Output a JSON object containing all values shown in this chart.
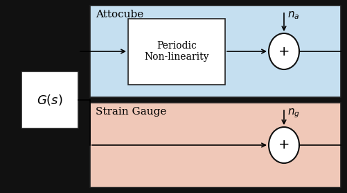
{
  "fig_width": 5.02,
  "fig_height": 2.78,
  "dpi": 100,
  "bg_color": "#111111",
  "attocube_bg": "#c5dff0",
  "attocube_border": "#222222",
  "strain_bg": "#f0c8b8",
  "strain_border": "#222222",
  "gs_box_color": "#ffffff",
  "gs_box_border": "#222222",
  "nl_box_color": "#ffffff",
  "nl_box_border": "#222222",
  "sum_circle_color": "#ffffff",
  "sum_circle_border": "#111111",
  "attocube_label": "Attocube",
  "strain_label": "Strain Gauge",
  "gs_label": "$G(s)$",
  "nl_label": "Periodic\nNon-linearity",
  "na_label": "$n_a$",
  "ng_label": "$n_g$"
}
